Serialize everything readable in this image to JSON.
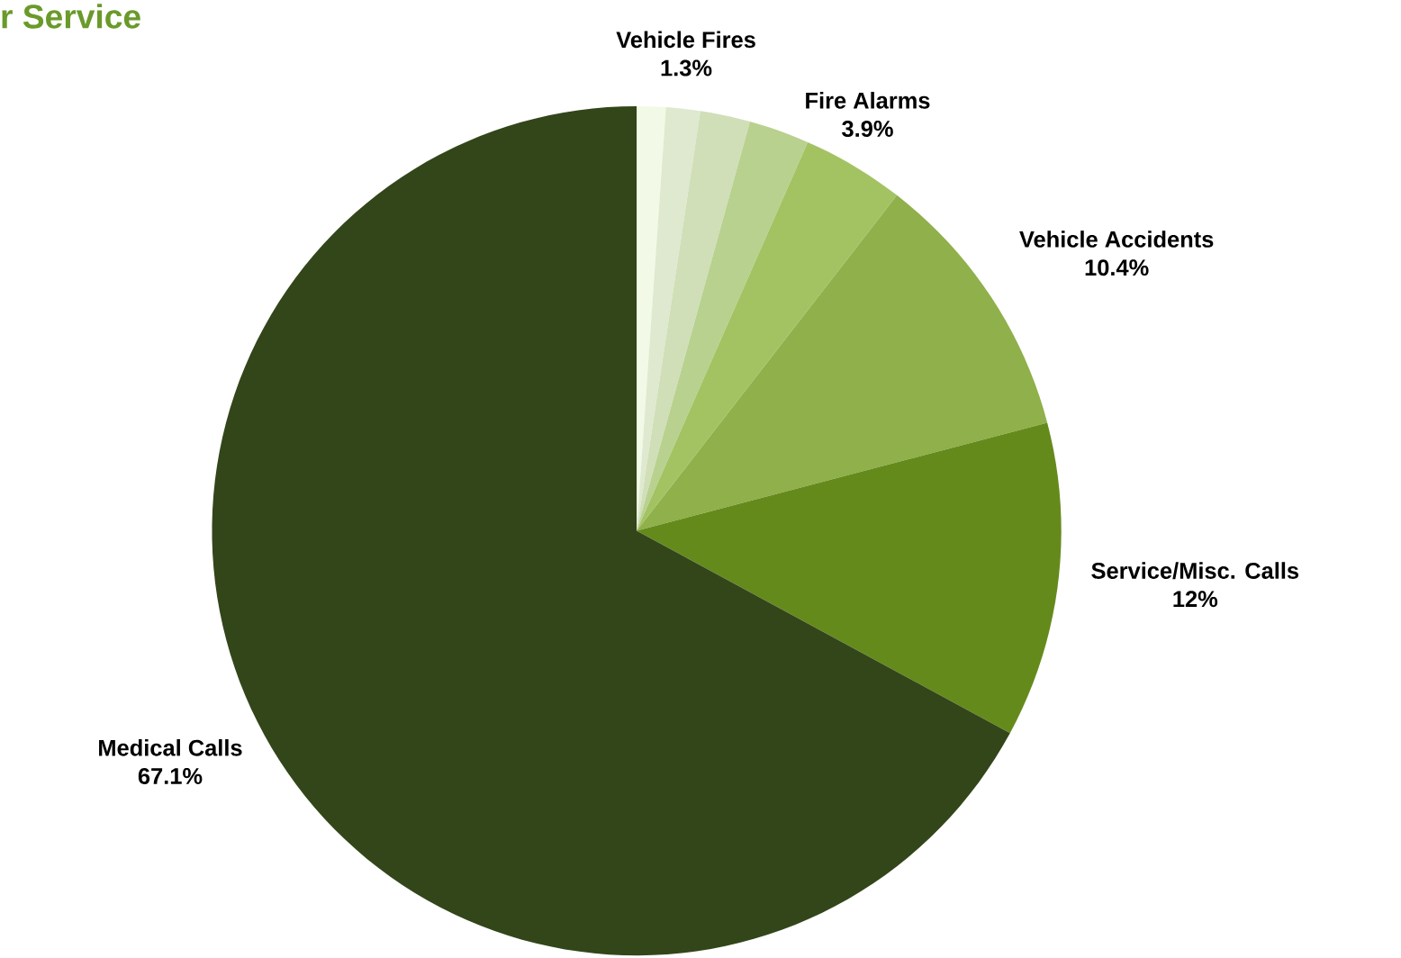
{
  "chart_data": {
    "type": "pie",
    "title": "r Service",
    "categories": [
      null,
      "Vehicle Fires",
      null,
      null,
      "Fire Alarms",
      "Vehicle Accidents",
      "Service/Misc. Calls",
      "Medical Calls"
    ],
    "values": [
      1.1,
      1.3,
      1.9,
      2.3,
      3.9,
      10.4,
      12,
      67.1
    ],
    "value_labels": [
      null,
      "1.3%",
      null,
      null,
      "3.9%",
      "10.4%",
      "12%",
      "67.1%"
    ],
    "colors": [
      "#f2f9e6",
      "#dfe9cf",
      "#d0dfb7",
      "#b8d18f",
      "#a3c363",
      "#8fb04a",
      "#658a1c",
      "#33461a"
    ]
  }
}
